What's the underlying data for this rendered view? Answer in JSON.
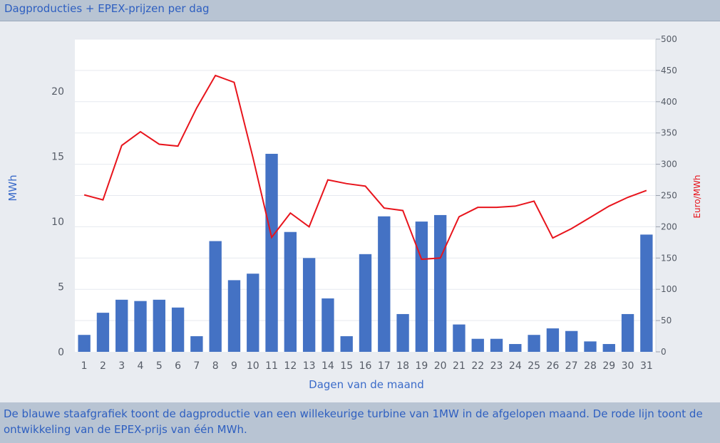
{
  "header": {
    "title": "Dagproducties + EPEX-prijzen per dag"
  },
  "footer": {
    "caption": "De blauwe staafgrafiek toont de dagproductie van een willekeurige turbine van 1MW in de afgelopen maand. De rode lijn toont de ontwikkeling van de EPEX-prijs van één MWh."
  },
  "colors": {
    "bar": "#4472c4",
    "line": "#e8141c",
    "plot_bg": "#ffffff",
    "grid": "#e6e9ef"
  },
  "chart_data": {
    "type": "bar",
    "title": "Dagproducties + EPEX-prijzen per dag",
    "xlabel": "Dagen van de maand",
    "ylabel": "MWh",
    "y2label": "Euro/MWh",
    "ylim": [
      0,
      24
    ],
    "y2lim": [
      0,
      500
    ],
    "yticks": [
      0,
      5,
      10,
      15,
      20
    ],
    "y2ticks": [
      0,
      50,
      100,
      150,
      200,
      250,
      300,
      350,
      400,
      450,
      500
    ],
    "grid": true,
    "categories": [
      "1",
      "2",
      "3",
      "4",
      "5",
      "6",
      "7",
      "8",
      "9",
      "10",
      "11",
      "12",
      "13",
      "14",
      "15",
      "16",
      "17",
      "18",
      "19",
      "20",
      "21",
      "22",
      "23",
      "24",
      "25",
      "26",
      "27",
      "28",
      "29",
      "30",
      "31"
    ],
    "series": [
      {
        "type": "bar",
        "axis": "left",
        "values": [
          1.3,
          3.0,
          4.0,
          3.9,
          4.0,
          3.4,
          1.2,
          8.5,
          5.5,
          6.0,
          15.2,
          9.2,
          7.2,
          4.1,
          1.2,
          7.5,
          10.4,
          2.9,
          10.0,
          10.5,
          2.1,
          1.0,
          1.0,
          0.6,
          1.3,
          1.8,
          1.6,
          0.8,
          0.6,
          2.9,
          9.0
        ]
      },
      {
        "type": "line",
        "axis": "right",
        "values": [
          251,
          243,
          330,
          352,
          332,
          329,
          390,
          442,
          431,
          311,
          183,
          222,
          200,
          275,
          269,
          265,
          230,
          226,
          148,
          150,
          216,
          231,
          231,
          233,
          241,
          182,
          197,
          215,
          233,
          247,
          258
        ]
      }
    ]
  }
}
